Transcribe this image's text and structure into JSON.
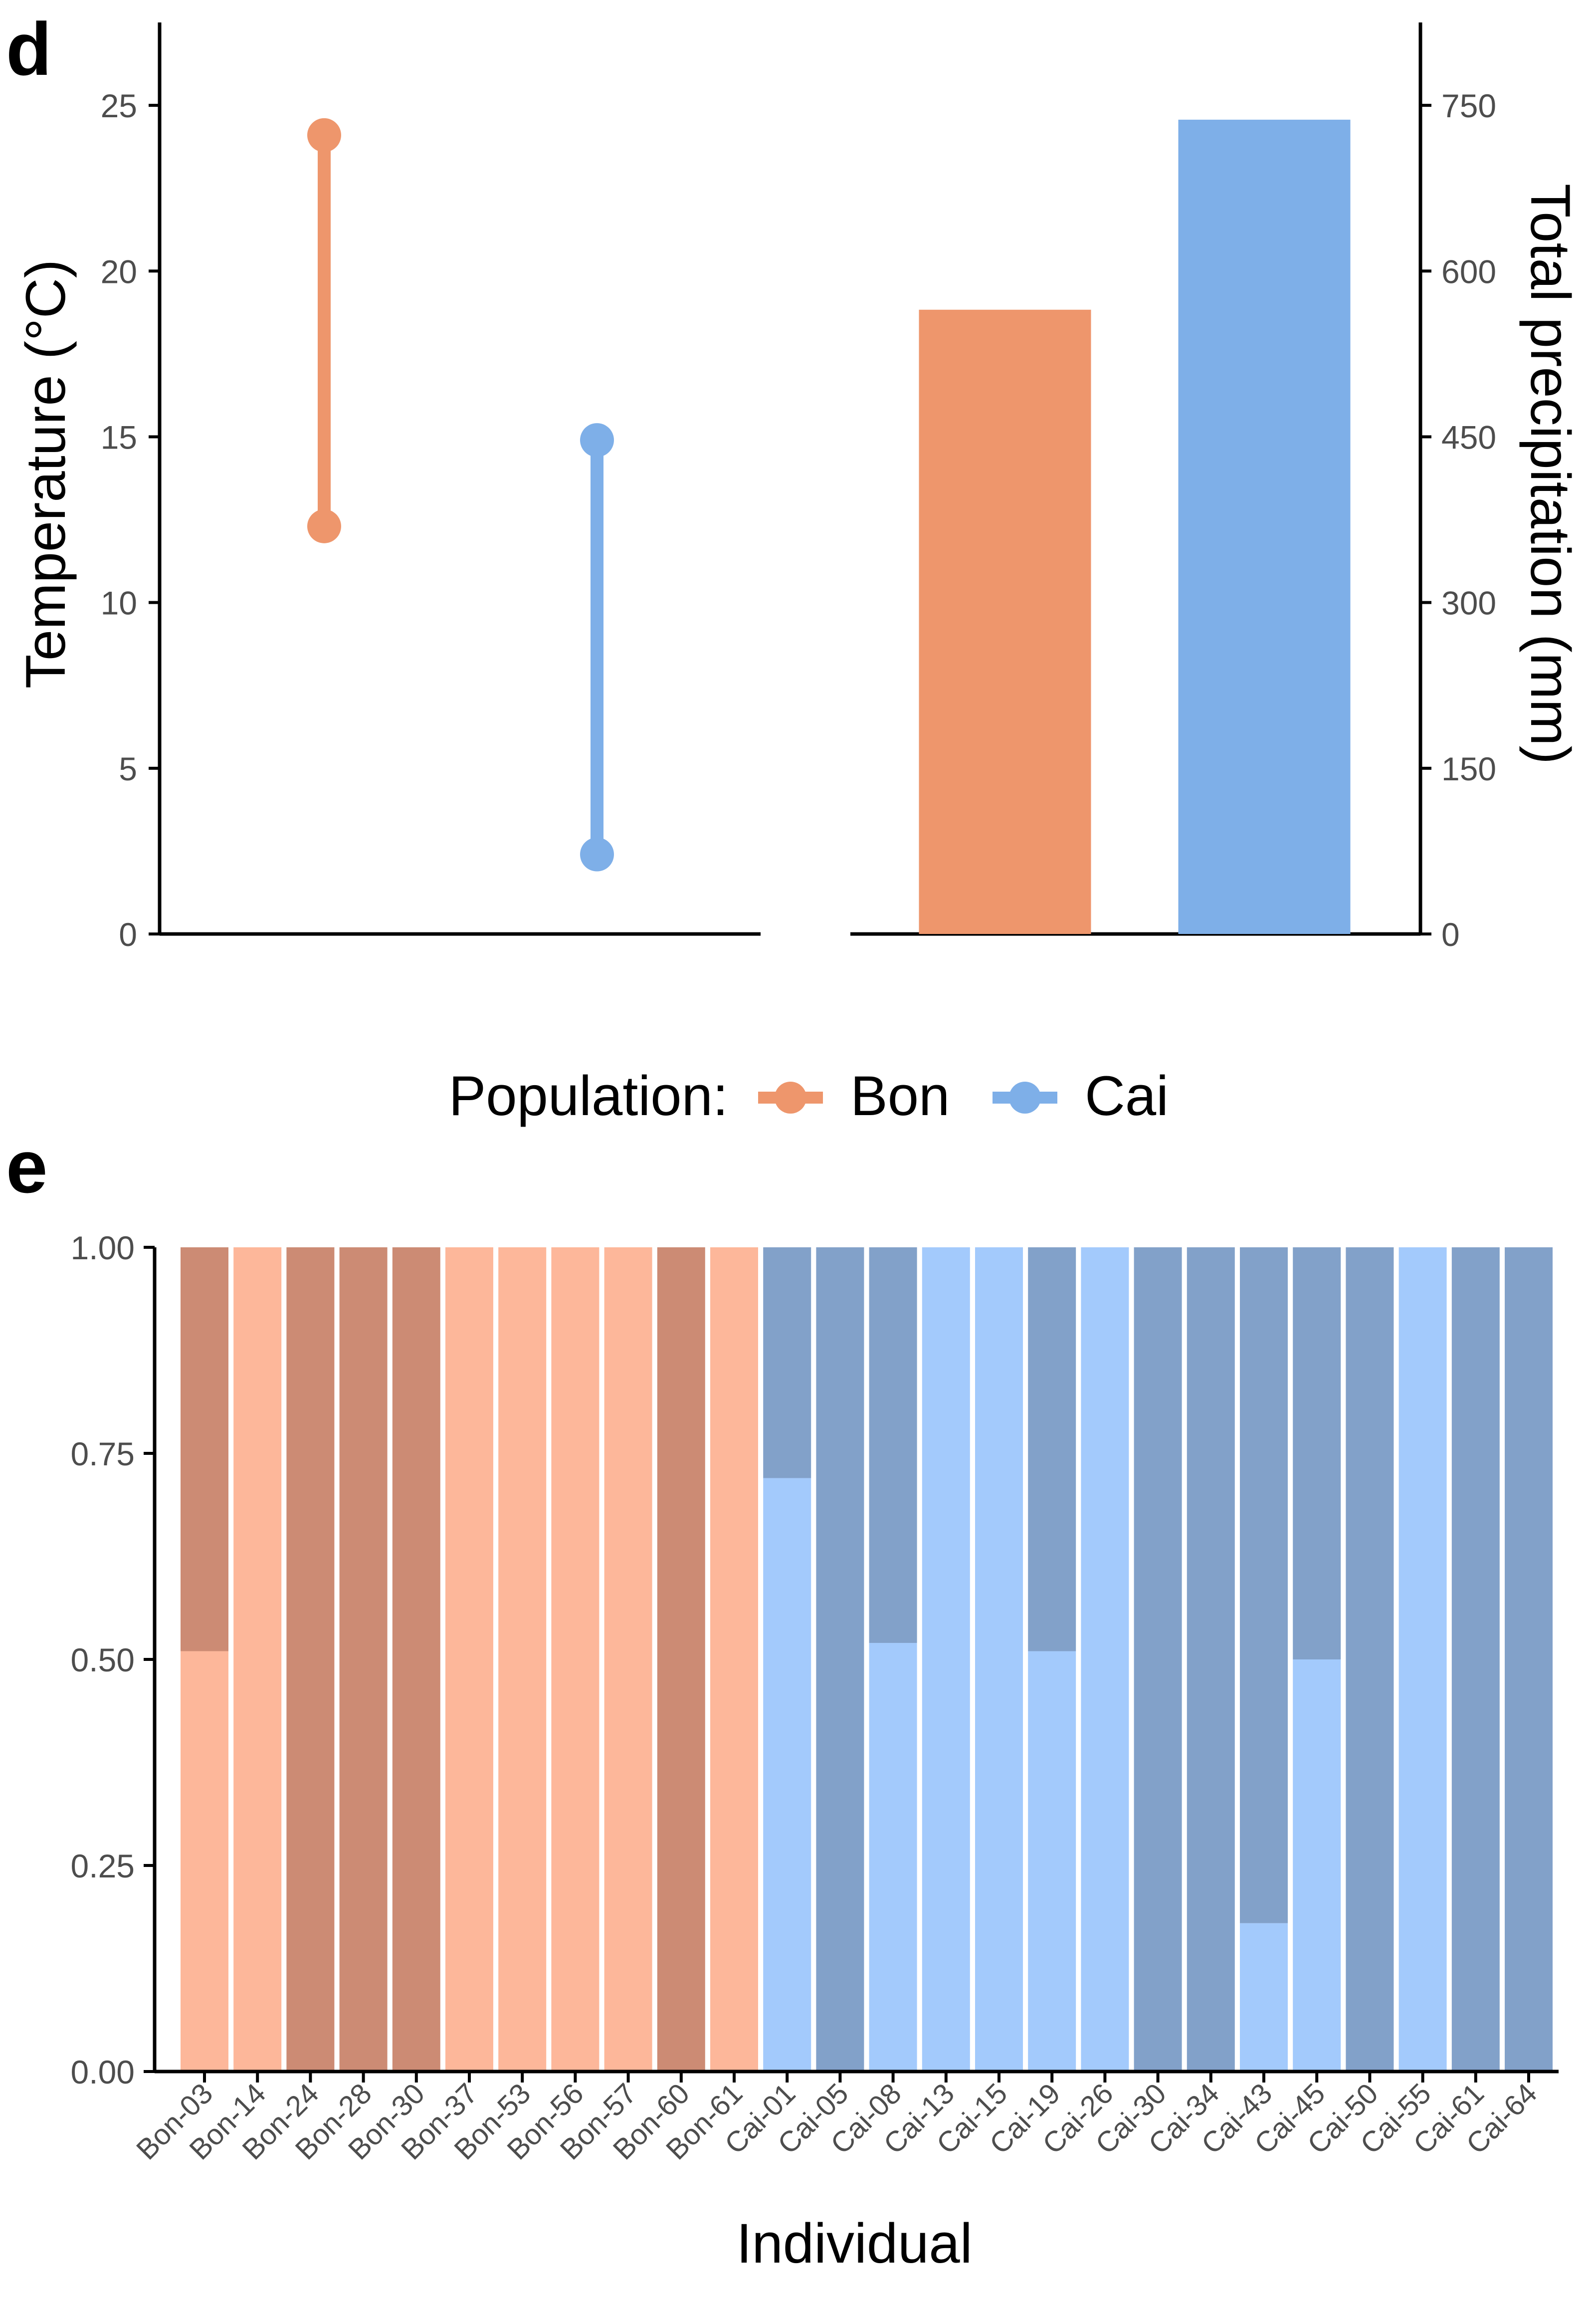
{
  "panel_d": {
    "letter": "d",
    "y_left_label": "Temperature (°C)",
    "y_right_label": "Total precipitation (mm)"
  },
  "legend": {
    "title": "Population:",
    "items": [
      "Bon",
      "Cai"
    ]
  },
  "panel_e": {
    "letter": "e",
    "xlabel": "Individual"
  },
  "colors": {
    "bon": "#EE966C",
    "cai": "#7EAFE8",
    "bon_light": "#FDB79A",
    "bon_dark": "#CC8B74",
    "cai_light": "#A3CAFC",
    "cai_dark": "#82A1C9",
    "axis": "#000000",
    "tick_text": "#4d4d4d"
  },
  "chart_data": [
    {
      "type": "line",
      "role": "temperature range",
      "categories": [
        "Bon",
        "Cai"
      ],
      "series": [
        {
          "name": "Bon",
          "low": 12.3,
          "high": 24.1
        },
        {
          "name": "Cai",
          "low": 2.4,
          "high": 14.9
        }
      ],
      "ylim": [
        0,
        27.5
      ],
      "yticks": [
        0,
        5,
        10,
        15,
        20,
        25
      ],
      "ylabel": "Temperature (°C)",
      "grid": false
    },
    {
      "type": "bar",
      "role": "total precipitation",
      "categories": [
        "Bon",
        "Cai"
      ],
      "values": [
        565,
        737
      ],
      "ylim": [
        0,
        825
      ],
      "yticks": [
        0,
        150,
        300,
        450,
        600,
        750
      ],
      "ylabel": "Total precipitation (mm)",
      "grid": false
    },
    {
      "type": "bar",
      "role": "stacked ancestry",
      "stacked": true,
      "xlabel": "Individual",
      "ylim": [
        0,
        1
      ],
      "yticks": [
        "0.00",
        "0.25",
        "0.50",
        "0.75",
        "1.00"
      ],
      "grid": false,
      "categories": [
        "Bon-03",
        "Bon-14",
        "Bon-24",
        "Bon-28",
        "Bon-30",
        "Bon-37",
        "Bon-53",
        "Bon-56",
        "Bon-57",
        "Bon-60",
        "Bon-61",
        "Cai-01",
        "Cai-05",
        "Cai-08",
        "Cai-13",
        "Cai-15",
        "Cai-19",
        "Cai-26",
        "Cai-30",
        "Cai-34",
        "Cai-43",
        "Cai-45",
        "Cai-50",
        "Cai-55",
        "Cai-61",
        "Cai-64"
      ],
      "series": [
        {
          "values": [
            0.51,
            1,
            0,
            0,
            0,
            1,
            1,
            1,
            1,
            0,
            1,
            0.72,
            0,
            0.52,
            1,
            1,
            0.51,
            1,
            0,
            0,
            0.18,
            0.5,
            0,
            1,
            0,
            0
          ]
        },
        {
          "values": [
            0.49,
            0,
            1,
            1,
            1,
            0,
            0,
            0,
            0,
            1,
            0,
            0.28,
            1,
            0.48,
            0,
            0,
            0.49,
            0,
            1,
            1,
            0.82,
            0.5,
            1,
            0,
            1,
            1
          ]
        }
      ]
    }
  ]
}
